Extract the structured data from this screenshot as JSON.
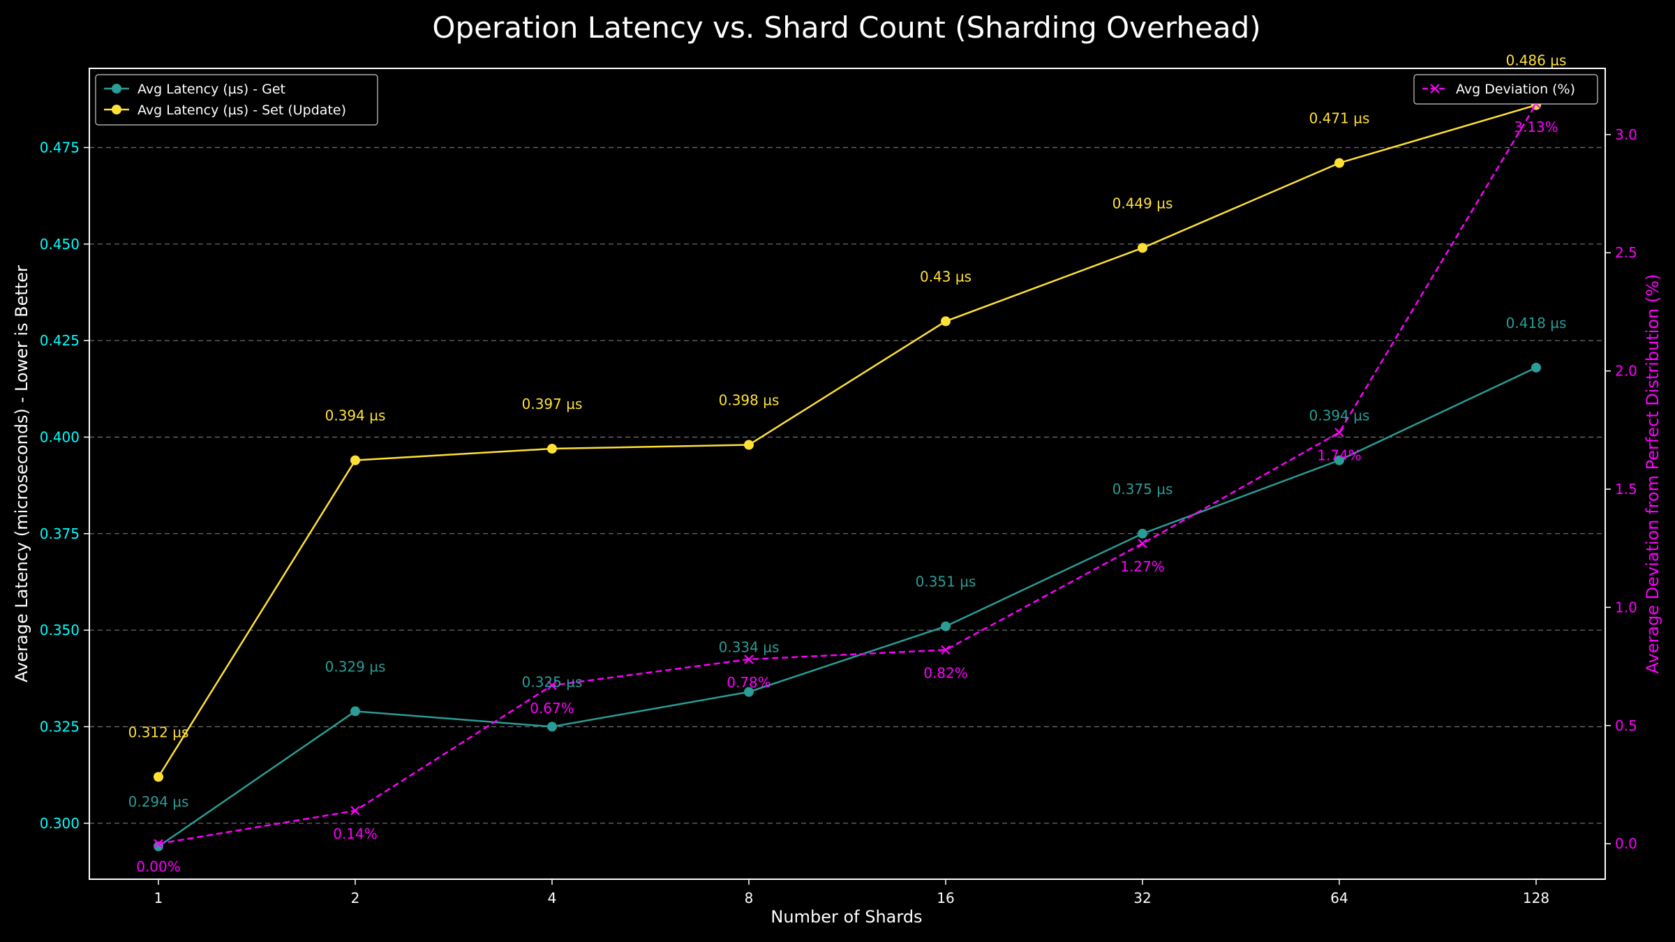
{
  "chart_data": {
    "type": "line",
    "title": "Operation Latency vs. Shard Count (Sharding Overhead)",
    "xlabel": "Number of Shards",
    "ylabel_left": "Average Latency (microseconds) - Lower is Better",
    "ylabel_right": "Average Deviation from Perfect Distribution (%)",
    "x_scale": "log2",
    "categories": [
      "1",
      "2",
      "4",
      "8",
      "16",
      "32",
      "64",
      "128"
    ],
    "x": [
      1,
      2,
      4,
      8,
      16,
      32,
      64,
      128
    ],
    "ylim_left": [
      0.2855,
      0.4955
    ],
    "ylim_right": [
      -0.15,
      3.28
    ],
    "yticks_left": [
      "0.300",
      "0.325",
      "0.350",
      "0.375",
      "0.400",
      "0.425",
      "0.450",
      "0.475"
    ],
    "yticks_right": [
      "0.0",
      "0.5",
      "1.0",
      "1.5",
      "2.0",
      "2.5",
      "3.0"
    ],
    "grid": true,
    "series": [
      {
        "name": "Avg Latency (µs) - Get",
        "axis": "left",
        "color": "#2a9d96",
        "marker": "circle",
        "linestyle": "solid",
        "values": [
          0.294,
          0.329,
          0.325,
          0.334,
          0.351,
          0.375,
          0.394,
          0.418
        ],
        "labels": [
          "0.294 µs",
          "0.329 µs",
          "0.325 µs",
          "0.334 µs",
          "0.351 µs",
          "0.375 µs",
          "0.394 µs",
          "0.418 µs"
        ]
      },
      {
        "name": "Avg Latency (µs) - Set (Update)",
        "axis": "left",
        "color": "#ffe135",
        "marker": "circle",
        "linestyle": "solid",
        "values": [
          0.312,
          0.394,
          0.397,
          0.398,
          0.43,
          0.449,
          0.471,
          0.486
        ],
        "labels": [
          "0.312 µs",
          "0.394 µs",
          "0.397 µs",
          "0.398 µs",
          "0.43 µs",
          "0.449 µs",
          "0.471 µs",
          "0.486 µs"
        ]
      },
      {
        "name": "Avg Deviation (%)",
        "axis": "right",
        "color": "#ff00ff",
        "marker": "x",
        "linestyle": "dashed",
        "values": [
          0.0,
          0.14,
          0.67,
          0.78,
          0.82,
          1.27,
          1.74,
          3.13
        ],
        "labels": [
          "0.00%",
          "0.14%",
          "0.67%",
          "0.78%",
          "0.82%",
          "1.27%",
          "1.74%",
          "3.13%"
        ]
      }
    ],
    "legend": [
      {
        "position": "top-left",
        "entries": [
          "Avg Latency (µs) - Get",
          "Avg Latency (µs) - Set (Update)"
        ]
      },
      {
        "position": "top-right",
        "entries": [
          "Avg Deviation (%)"
        ]
      }
    ]
  }
}
